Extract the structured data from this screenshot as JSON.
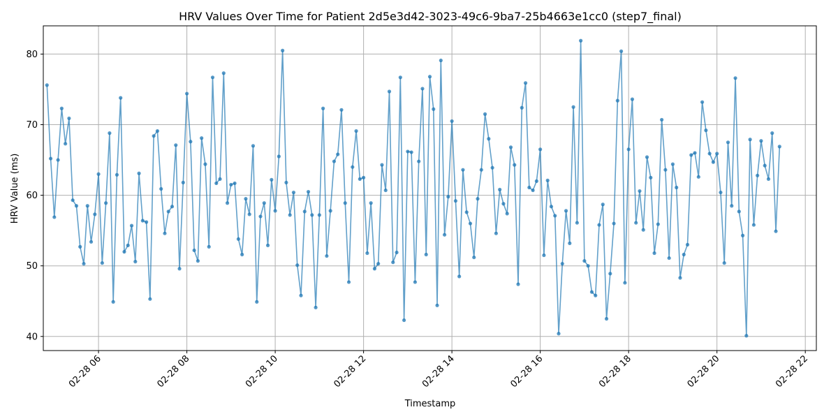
{
  "chart_data": {
    "type": "line",
    "title": "HRV Values Over Time for Patient 2d5e3d42-3023-49c6-9ba7-25b4663e1cc0 (step7_final)",
    "xlabel": "Timestamp",
    "ylabel": "HRV Value (ms)",
    "x_range": [
      "2025-02-28T04:45",
      "2025-02-28T22:15"
    ],
    "ylim": [
      38,
      84
    ],
    "grid": true,
    "line_color": "#1f77b4",
    "x_ticks": [
      {
        "label": "02-28 06",
        "t": "2025-02-28T06:00"
      },
      {
        "label": "02-28 08",
        "t": "2025-02-28T08:00"
      },
      {
        "label": "02-28 10",
        "t": "2025-02-28T10:00"
      },
      {
        "label": "02-28 12",
        "t": "2025-02-28T12:00"
      },
      {
        "label": "02-28 14",
        "t": "2025-02-28T14:00"
      },
      {
        "label": "02-28 16",
        "t": "2025-02-28T16:00"
      },
      {
        "label": "02-28 18",
        "t": "2025-02-28T18:00"
      },
      {
        "label": "02-28 20",
        "t": "2025-02-28T20:00"
      },
      {
        "label": "02-28 22",
        "t": "2025-02-28T22:00"
      }
    ],
    "y_ticks": [
      {
        "label": "40",
        "v": 40
      },
      {
        "label": "50",
        "v": 50
      },
      {
        "label": "60",
        "v": 60
      },
      {
        "label": "70",
        "v": 70
      },
      {
        "label": "80",
        "v": 80
      }
    ],
    "series": [
      {
        "x_start": "2025-02-28T04:50",
        "x_step_minutes": 5,
        "values": [
          75.6,
          65.2,
          56.9,
          65.0,
          72.3,
          67.3,
          70.9,
          59.3,
          58.5,
          52.7,
          50.3,
          58.5,
          53.4,
          57.3,
          63.0,
          50.4,
          58.9,
          68.8,
          44.9,
          62.9,
          73.8,
          52.0,
          52.9,
          55.7,
          50.6,
          63.1,
          56.4,
          56.2,
          45.3,
          68.4,
          69.1,
          60.9,
          54.6,
          57.7,
          58.4,
          67.1,
          49.6,
          61.8,
          74.4,
          67.6,
          52.2,
          50.7,
          68.1,
          64.4,
          52.7,
          76.7,
          61.7,
          62.3,
          77.3,
          58.9,
          61.5,
          61.7,
          53.8,
          51.6,
          59.5,
          57.3,
          67.0,
          44.9,
          57.0,
          58.9,
          52.9,
          62.2,
          57.8,
          65.5,
          80.5,
          61.8,
          57.2,
          60.4,
          50.1,
          45.8,
          57.7,
          60.5,
          57.2,
          44.1,
          57.2,
          72.3,
          51.4,
          57.8,
          64.8,
          65.8,
          72.1,
          58.9,
          47.7,
          64.0,
          69.1,
          62.3,
          62.5,
          51.8,
          58.9,
          49.6,
          50.3,
          64.3,
          60.7,
          74.7,
          50.5,
          51.9,
          76.7,
          42.3,
          66.2,
          66.1,
          47.7,
          64.8,
          75.1,
          51.6,
          76.8,
          72.2,
          44.4,
          79.1,
          54.4,
          59.8,
          70.5,
          59.2,
          48.5,
          63.6,
          57.6,
          56.0,
          51.2,
          59.5,
          63.6,
          71.5,
          68.0,
          63.9,
          54.6,
          60.8,
          58.8,
          57.4,
          66.8,
          64.3,
          47.4,
          72.4,
          75.9,
          61.1,
          60.7,
          62.0,
          66.5,
          51.5,
          62.1,
          58.4,
          57.1,
          40.4,
          50.3,
          57.8,
          53.2,
          72.5,
          56.1,
          81.9,
          50.7,
          50.0,
          46.3,
          45.8,
          55.8,
          58.7,
          42.5,
          48.9,
          56.0,
          73.4,
          80.4,
          47.6,
          66.5,
          73.6,
          56.1,
          60.6,
          55.1,
          65.4,
          62.5,
          51.8,
          55.9,
          70.7,
          63.6,
          51.1,
          64.4,
          61.1,
          48.3,
          51.6,
          53.0,
          65.7,
          66.0,
          62.6,
          73.2,
          69.2,
          65.9,
          64.7,
          65.9,
          60.4,
          50.4,
          67.5,
          58.5,
          76.6,
          57.7,
          54.3,
          40.1,
          67.9,
          55.8,
          62.8,
          67.7,
          64.2,
          62.3,
          68.8,
          54.9,
          66.9
        ]
      }
    ]
  }
}
